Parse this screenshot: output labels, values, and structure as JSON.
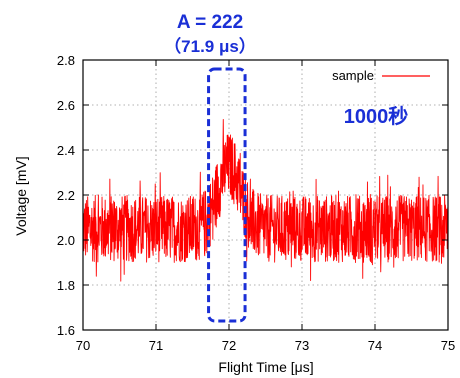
{
  "chart_data": {
    "type": "line",
    "title": "",
    "xlabel": "Flight Time [μs]",
    "ylabel": "Voltage [mV]",
    "xlim": [
      70,
      75
    ],
    "ylim": [
      1.6,
      2.8
    ],
    "xticks": [
      "70",
      "71",
      "72",
      "73",
      "74",
      "75"
    ],
    "yticks": [
      "1.6",
      "1.8",
      "2.0",
      "2.2",
      "2.4",
      "2.6",
      "2.8"
    ],
    "grid": true,
    "grid_style": "dotted",
    "legend_position": "top-right",
    "series": [
      {
        "name": "sample",
        "color": "#ff0000",
        "baseline": 2.05,
        "noise_amplitude": 0.15,
        "peak_center": 72.0,
        "peak_height": 0.28,
        "x_points": [
          70.0,
          70.25,
          70.5,
          70.75,
          71.0,
          71.25,
          71.5,
          71.75,
          71.9,
          72.0,
          72.1,
          72.25,
          72.5,
          72.75,
          73.0,
          73.25,
          73.5,
          73.75,
          74.0,
          74.25,
          74.5,
          74.75,
          75.0
        ],
        "y_points": [
          2.05,
          2.08,
          2.06,
          2.1,
          2.08,
          2.12,
          2.15,
          2.22,
          2.3,
          2.32,
          2.28,
          2.15,
          2.08,
          2.06,
          2.04,
          2.05,
          2.03,
          2.05,
          2.04,
          2.06,
          2.05,
          2.04,
          2.05
        ]
      }
    ],
    "annotations": {
      "peak_label": "A = 222",
      "peak_time": "（71.9 μs）",
      "duration": "1000秒",
      "box_color": "#1a2fd6"
    }
  }
}
